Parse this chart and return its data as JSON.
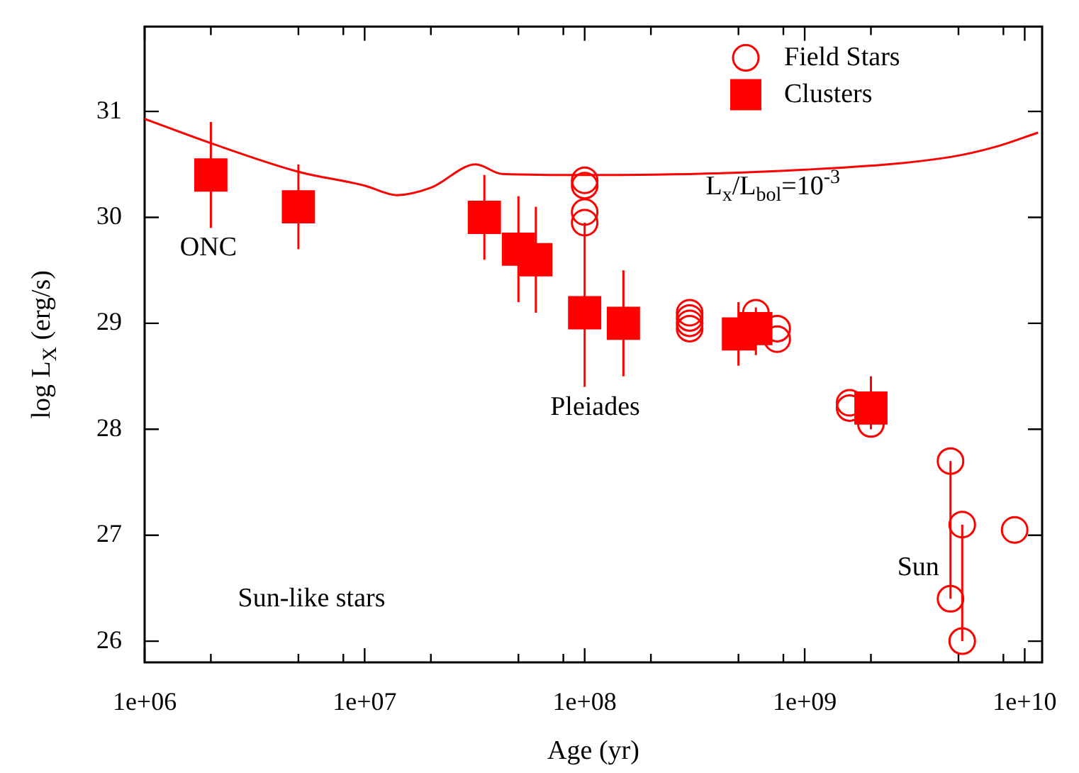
{
  "chart_data": {
    "type": "scatter",
    "xlabel": "Age (yr)",
    "ylabel": "log L$_{X}$ (erg/s)",
    "log": "x",
    "grid": false,
    "legend": "top right",
    "xlim": [
      1000000,
      12000000000
    ],
    "xticks": [
      {
        "value": 1000000,
        "label": "1e+06"
      },
      {
        "value": 2000000,
        "label": null
      },
      {
        "value": 5000000,
        "label": null
      },
      {
        "value": 8000000,
        "label": null
      },
      {
        "value": 10000000,
        "label": "1e+07"
      },
      {
        "value": 20000000,
        "label": null
      },
      {
        "value": 50000000,
        "label": null
      },
      {
        "value": 80000000,
        "label": null
      },
      {
        "value": 100000000,
        "label": "1e+08"
      },
      {
        "value": 200000000,
        "label": null
      },
      {
        "value": 500000000,
        "label": null
      },
      {
        "value": 800000000,
        "label": null
      },
      {
        "value": 1000000000,
        "label": "1e+09"
      },
      {
        "value": 2000000000,
        "label": null
      },
      {
        "value": 5000000000,
        "label": null
      },
      {
        "value": 8000000000,
        "label": null
      },
      {
        "value": 10000000000,
        "label": "1e+10"
      }
    ],
    "ylim": [
      25.8,
      31.8
    ],
    "yticks": [
      26,
      27,
      28,
      29,
      30,
      31
    ],
    "series": [
      {
        "name": "Field Stars",
        "marker": "circle",
        "color": "#ff0000",
        "x": [
          100000000,
          100000000,
          100000000,
          100000000,
          300000000,
          300000000,
          300000000,
          300000000,
          600000000,
          750000000,
          750000000,
          1600000000,
          1600000000,
          2000000000,
          4600000000,
          4600000000,
          5200000000,
          5200000000,
          9000000000
        ],
        "values": [
          30.35,
          30.3,
          30.05,
          29.95,
          29.1,
          29.05,
          29.0,
          28.95,
          29.1,
          28.95,
          28.85,
          28.25,
          28.2,
          28.05,
          27.7,
          26.4,
          27.1,
          26.0,
          27.05
        ],
        "errors": [
          null,
          null,
          null,
          null,
          null,
          null,
          null,
          null,
          null,
          null,
          null,
          null,
          null,
          null,
          [
            26.4,
            27.7
          ],
          null,
          [
            26.0,
            27.1
          ],
          null,
          null
        ]
      },
      {
        "name": "Clusters",
        "marker": "square",
        "color": "#ff0000",
        "x": [
          2000000,
          5000000,
          35000000,
          50000000,
          60000000,
          100000000,
          150000000,
          500000000,
          600000000,
          2000000000
        ],
        "values": [
          30.4,
          30.1,
          30.0,
          29.7,
          29.6,
          29.1,
          29.0,
          28.9,
          28.95,
          28.2
        ],
        "errors": [
          [
            29.9,
            30.9
          ],
          [
            29.7,
            30.5
          ],
          [
            29.6,
            30.4
          ],
          [
            29.2,
            30.2
          ],
          [
            29.1,
            30.1
          ],
          [
            28.4,
            29.95
          ],
          [
            28.5,
            29.5
          ],
          [
            28.6,
            29.2
          ],
          [
            28.7,
            29.15
          ],
          [
            28.0,
            28.5
          ]
        ]
      },
      {
        "type": "line",
        "marker": "none",
        "color": "#ff0000",
        "x": [
          1000000,
          2000000,
          5000000,
          10000000,
          14000000,
          20000000,
          32000000,
          42000000,
          100000000,
          1000000000,
          4600000000,
          7500000000,
          11500000000
        ],
        "values": [
          30.93,
          30.7,
          30.43,
          30.3,
          30.21,
          30.28,
          30.5,
          30.41,
          30.4,
          30.45,
          30.57,
          30.67,
          30.8
        ]
      }
    ],
    "annotations": [
      "ONC",
      "Pleiades",
      "Sun",
      "L$_{x}$/L$_{bol}$=10$^{-3}$",
      "Sun-like stars"
    ]
  }
}
